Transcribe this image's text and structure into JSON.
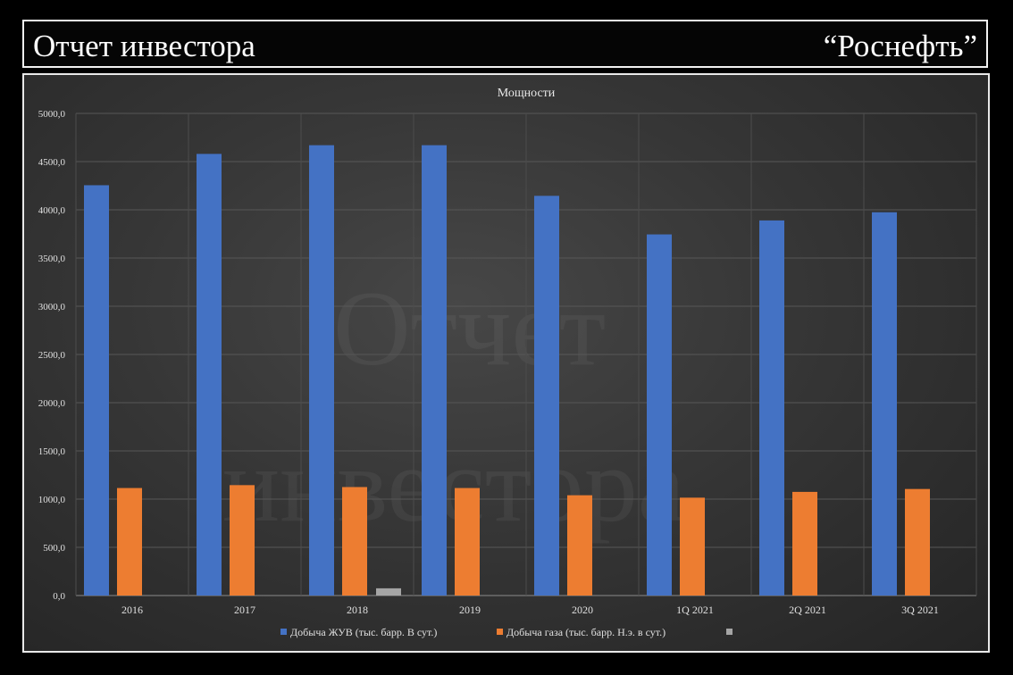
{
  "header": {
    "left_title": "Отчет инвестора",
    "right_title": "“Роснефть”"
  },
  "watermark": {
    "line1": "Отчет",
    "line2": "инвестора"
  },
  "chart_data": {
    "type": "bar",
    "title": "Мощности",
    "categories": [
      "2016",
      "2017",
      "2018",
      "2019",
      "2020",
      "1Q 2021",
      "2Q 2021",
      "3Q 2021"
    ],
    "series": [
      {
        "name": "Добыча ЖУВ (тыс. барр. В сут.)",
        "color": "#4472c4",
        "values": [
          4255,
          4580,
          4670,
          4670,
          4145,
          3745,
          3890,
          3975
        ]
      },
      {
        "name": "Добыча газа (тыс. барр. Н.э. в сут.)",
        "color": "#ed7d31",
        "values": [
          1115,
          1145,
          1125,
          1115,
          1040,
          1015,
          1075,
          1105
        ]
      },
      {
        "name": "",
        "color": "#a5a5a5",
        "values": [
          null,
          null,
          75,
          null,
          null,
          null,
          null,
          null
        ]
      }
    ],
    "ylim": [
      0,
      5000
    ],
    "yticks": [
      "0,0",
      "500,0",
      "1000,0",
      "1500,0",
      "2000,0",
      "2500,0",
      "3000,0",
      "3500,0",
      "4000,0",
      "4500,0",
      "5000,0"
    ],
    "grid": true,
    "legend_position": "bottom"
  }
}
